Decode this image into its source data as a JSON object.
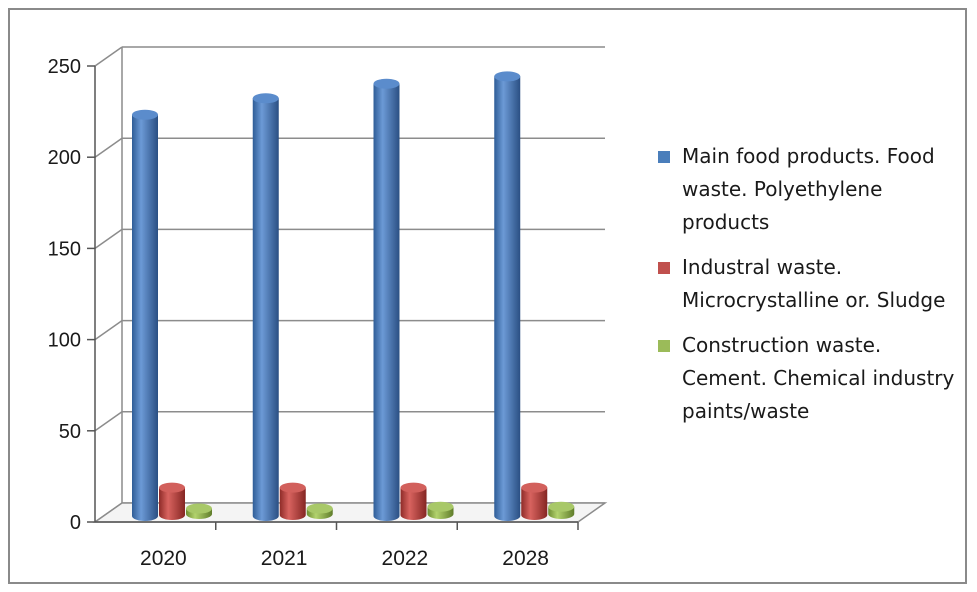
{
  "chart_data": {
    "type": "bar",
    "categories": [
      "2020",
      "2021",
      "2022",
      "2028"
    ],
    "series": [
      {
        "name": "Main food products. Food waste. Polyethylene products",
        "values": [
          220,
          229,
          237,
          241
        ],
        "color": "#4a7ebb"
      },
      {
        "name": "Industral waste. Microcrystalline or. Sludge",
        "values": [
          15,
          15,
          15,
          15
        ],
        "color": "#c0504d"
      },
      {
        "name": "Construction waste. Cement. Chemical industry paints/waste",
        "values": [
          3,
          3,
          4,
          4
        ],
        "color": "#9bbb59"
      }
    ],
    "y_ticks": [
      "0",
      "50",
      "100",
      "150",
      "200",
      "250"
    ],
    "ylim": [
      0,
      250
    ],
    "grid": true,
    "legend_position": "right",
    "style": "3d-cylinder"
  }
}
